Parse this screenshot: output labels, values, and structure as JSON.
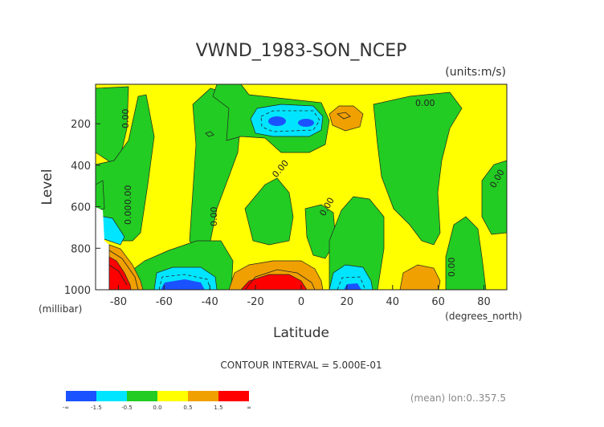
{
  "chart_data": {
    "type": "heatmap",
    "title": "VWND_1983-SON_NCEP",
    "units": "(units:m/s)",
    "xlabel": "Latitude",
    "x_units": "(degrees_north)",
    "ylabel": "Level",
    "y_units": "(millibar)",
    "x_ticks": [
      "-80",
      "-60",
      "-40",
      "-20",
      "0",
      "20",
      "40",
      "60",
      "80"
    ],
    "x_tick_values": [
      -80,
      -60,
      -40,
      -20,
      0,
      20,
      40,
      60,
      80
    ],
    "y_ticks": [
      "200",
      "400",
      "600",
      "800",
      "1000"
    ],
    "y_tick_values": [
      200,
      400,
      600,
      800,
      1000
    ],
    "xlim": [
      -90,
      90
    ],
    "ylim": [
      1000,
      10
    ],
    "contour_interval": "CONTOUR INTERVAL = 5.000E-01",
    "contour_labels": [
      "0.00",
      "0.00",
      "0.00",
      "0.00",
      "0.00",
      "0.00",
      "0.00",
      "0.00",
      "0.00"
    ],
    "legend": {
      "colors": [
        "#1a52ff",
        "#00e5ff",
        "#22cc22",
        "#ffff00",
        "#f0a000",
        "#ff0000"
      ],
      "labels": [
        "-∞",
        "-1.5",
        "-0.5",
        "0.0",
        "0.5",
        "1.5",
        "∞"
      ]
    },
    "footnote": "(mean) lon:0..357.5"
  }
}
